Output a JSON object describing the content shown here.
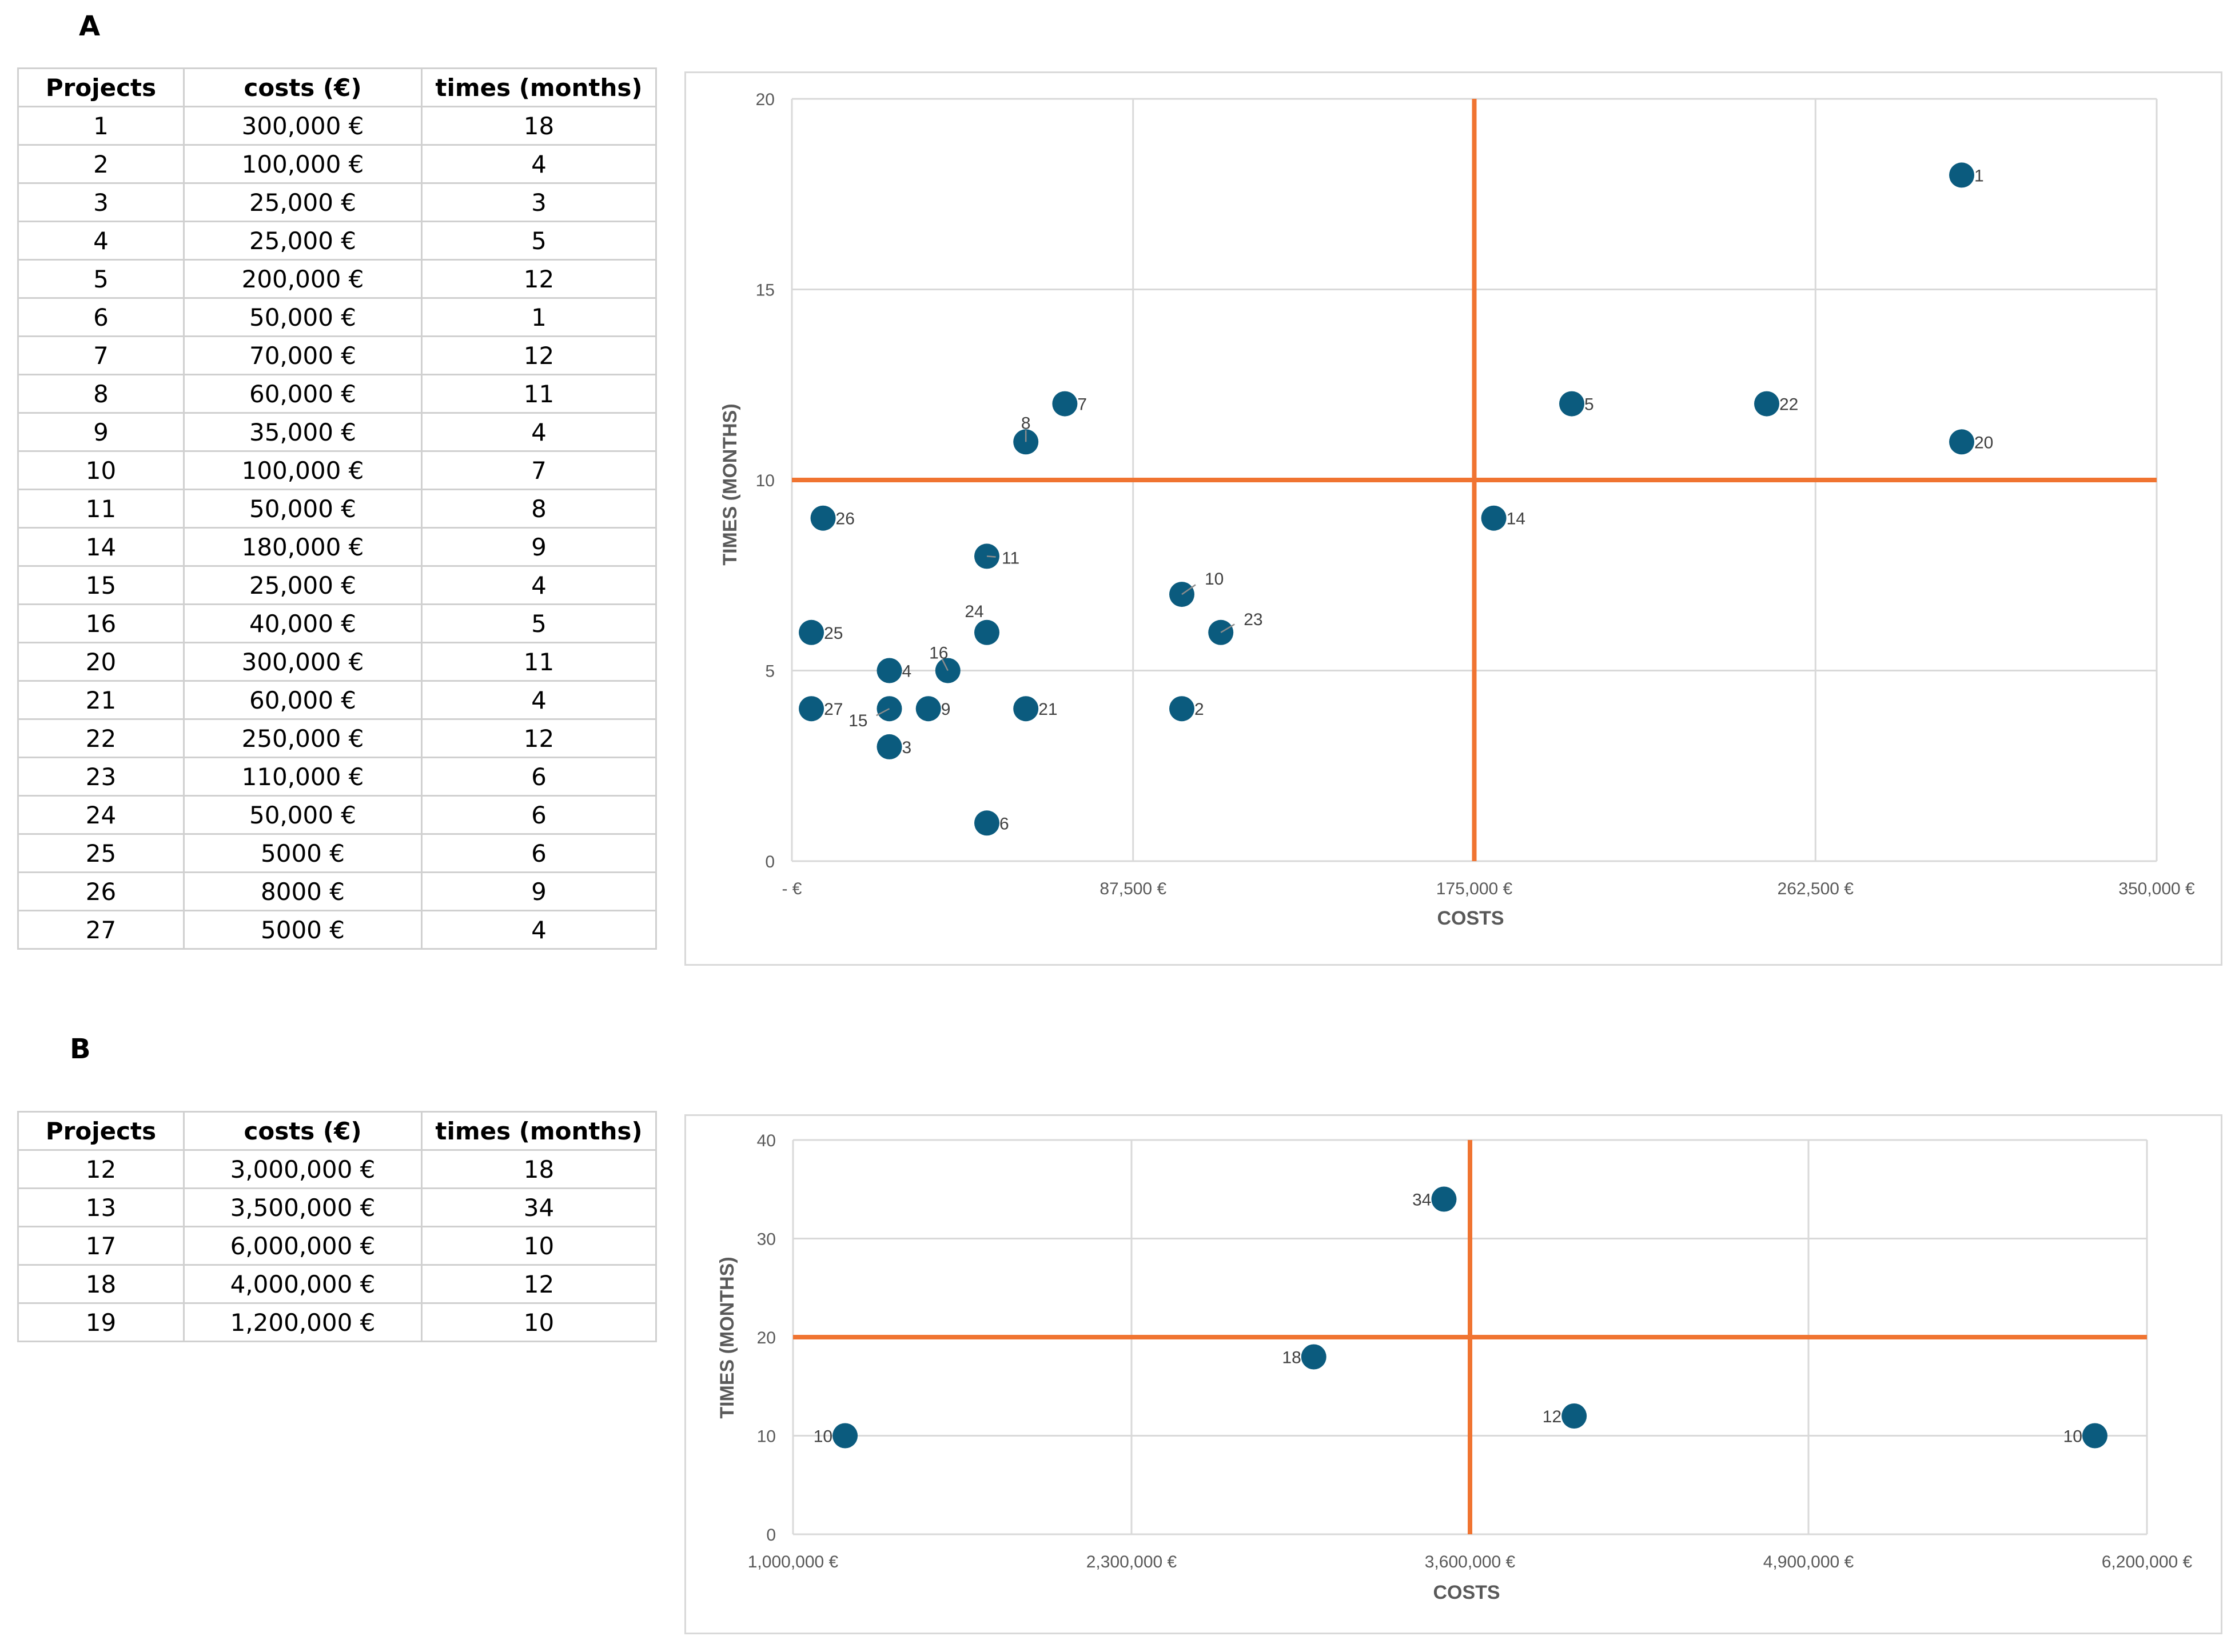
{
  "panels": {
    "a_label": "A",
    "b_label": "B"
  },
  "table_a": {
    "headers": [
      "Projects",
      "costs (€)",
      "times (months)"
    ],
    "rows": [
      [
        "1",
        "300,000 €",
        "18"
      ],
      [
        "2",
        "100,000 €",
        "4"
      ],
      [
        "3",
        "25,000 €",
        "3"
      ],
      [
        "4",
        "25,000 €",
        "5"
      ],
      [
        "5",
        "200,000 €",
        "12"
      ],
      [
        "6",
        "50,000 €",
        "1"
      ],
      [
        "7",
        "70,000 €",
        "12"
      ],
      [
        "8",
        "60,000 €",
        "11"
      ],
      [
        "9",
        "35,000 €",
        "4"
      ],
      [
        "10",
        "100,000 €",
        "7"
      ],
      [
        "11",
        "50,000 €",
        "8"
      ],
      [
        "14",
        "180,000 €",
        "9"
      ],
      [
        "15",
        "25,000 €",
        "4"
      ],
      [
        "16",
        "40,000 €",
        "5"
      ],
      [
        "20",
        "300,000 €",
        "11"
      ],
      [
        "21",
        "60,000 €",
        "4"
      ],
      [
        "22",
        "250,000 €",
        "12"
      ],
      [
        "23",
        "110,000 €",
        "6"
      ],
      [
        "24",
        "50,000 €",
        "6"
      ],
      [
        "25",
        "5000 €",
        "6"
      ],
      [
        "26",
        "8000 €",
        "9"
      ],
      [
        "27",
        "5000 €",
        "4"
      ]
    ]
  },
  "table_b": {
    "headers": [
      "Projects",
      "costs (€)",
      "times (months)"
    ],
    "rows": [
      [
        "12",
        "3,000,000 €",
        "18"
      ],
      [
        "13",
        "3,500,000 €",
        "34"
      ],
      [
        "17",
        "6,000,000 €",
        "10"
      ],
      [
        "18",
        "4,000,000 €",
        "12"
      ],
      [
        "19",
        "1,200,000 €",
        "10"
      ]
    ]
  },
  "chart_data": [
    {
      "type": "scatter",
      "title": "",
      "xlabel": "COSTS",
      "ylabel": "TIMES (MONTHS)",
      "xlim": [
        0,
        350000
      ],
      "ylim": [
        0,
        20
      ],
      "x_ticks": [
        0,
        87500,
        175000,
        262500,
        350000
      ],
      "x_tick_labels": [
        "-   €",
        "87,500 €",
        "175,000 €",
        "262,500 €",
        "350,000 €"
      ],
      "y_ticks": [
        0,
        5,
        10,
        15,
        20
      ],
      "y_tick_labels": [
        "0",
        "5",
        "10",
        "15",
        "20"
      ],
      "grid": true,
      "marker_color": "#0b5b7e",
      "quadrant_line_color": "#f07431",
      "quadrant_lines": {
        "x": 175000,
        "y": 10
      },
      "points": [
        {
          "x": 300000,
          "y": 18,
          "label": "1"
        },
        {
          "x": 100000,
          "y": 4,
          "label": "2"
        },
        {
          "x": 25000,
          "y": 3,
          "label": "3"
        },
        {
          "x": 25000,
          "y": 5,
          "label": "4"
        },
        {
          "x": 200000,
          "y": 12,
          "label": "5"
        },
        {
          "x": 50000,
          "y": 1,
          "label": "6"
        },
        {
          "x": 70000,
          "y": 12,
          "label": "7"
        },
        {
          "x": 60000,
          "y": 11,
          "label": "8"
        },
        {
          "x": 35000,
          "y": 4,
          "label": "9"
        },
        {
          "x": 100000,
          "y": 7,
          "label": "10"
        },
        {
          "x": 50000,
          "y": 8,
          "label": "11"
        },
        {
          "x": 180000,
          "y": 9,
          "label": "14"
        },
        {
          "x": 25000,
          "y": 4,
          "label": "15"
        },
        {
          "x": 40000,
          "y": 5,
          "label": "16"
        },
        {
          "x": 300000,
          "y": 11,
          "label": "20"
        },
        {
          "x": 60000,
          "y": 4,
          "label": "21"
        },
        {
          "x": 250000,
          "y": 12,
          "label": "22"
        },
        {
          "x": 110000,
          "y": 6,
          "label": "23"
        },
        {
          "x": 50000,
          "y": 6,
          "label": "24"
        },
        {
          "x": 5000,
          "y": 6,
          "label": "25"
        },
        {
          "x": 8000,
          "y": 9,
          "label": "26"
        },
        {
          "x": 5000,
          "y": 4,
          "label": "27"
        }
      ]
    },
    {
      "type": "scatter",
      "title": "",
      "xlabel": "COSTS",
      "ylabel": "TIMES (MONTHS)",
      "xlim": [
        1000000,
        6200000
      ],
      "ylim": [
        0,
        40
      ],
      "x_ticks": [
        1000000,
        2300000,
        3600000,
        4900000,
        6200000
      ],
      "x_tick_labels": [
        "1,000,000 €",
        "2,300,000 €",
        "3,600,000 €",
        "4,900,000 €",
        "6,200,000 €"
      ],
      "y_ticks": [
        0,
        10,
        20,
        30,
        40
      ],
      "y_tick_labels": [
        "0",
        "10",
        "20",
        "30",
        "40"
      ],
      "grid": true,
      "marker_color": "#0b5b7e",
      "quadrant_line_color": "#f07431",
      "quadrant_lines": {
        "x": 3600000,
        "y": 20
      },
      "points": [
        {
          "x": 3000000,
          "y": 18,
          "label": "18"
        },
        {
          "x": 3500000,
          "y": 34,
          "label": "34"
        },
        {
          "x": 6000000,
          "y": 10,
          "label": "10"
        },
        {
          "x": 4000000,
          "y": 12,
          "label": "12"
        },
        {
          "x": 1200000,
          "y": 10,
          "label": "10"
        }
      ]
    }
  ]
}
